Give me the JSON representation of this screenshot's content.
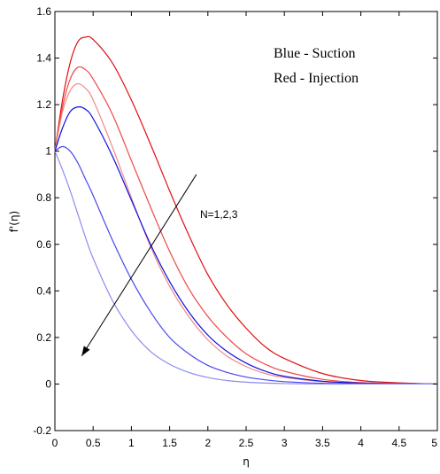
{
  "chart_data": {
    "type": "line",
    "xlabel": "η",
    "ylabel": "f'(η)",
    "xlim": [
      0,
      5
    ],
    "ylim": [
      -0.2,
      1.6
    ],
    "xticks": [
      "0",
      "0.5",
      "1",
      "1.5",
      "2",
      "2.5",
      "3",
      "3.5",
      "4",
      "4.5",
      "5"
    ],
    "yticks": [
      "-0.2",
      "0",
      "0.2",
      "0.4",
      "0.6",
      "0.8",
      "1",
      "1.2",
      "1.4",
      "1.6"
    ],
    "grid": false,
    "legend_lines": [
      "Blue - Suction",
      "Red - Injection"
    ],
    "legend_placement": "top-right",
    "annotation": {
      "text": "N=1,2,3",
      "arrow_from": [
        1.85,
        0.9
      ],
      "arrow_to": [
        0.35,
        0.12
      ]
    },
    "series": [
      {
        "color": "#e01010",
        "x": [
          0,
          0.1,
          0.2,
          0.3,
          0.4,
          0.5,
          0.75,
          1,
          1.25,
          1.5,
          1.75,
          2,
          2.25,
          2.5,
          2.75,
          3,
          3.5,
          4,
          4.5,
          5
        ],
        "y": [
          1.0,
          1.22,
          1.38,
          1.47,
          1.49,
          1.48,
          1.38,
          1.22,
          1.03,
          0.83,
          0.64,
          0.47,
          0.34,
          0.24,
          0.16,
          0.11,
          0.045,
          0.015,
          0.005,
          0.0
        ]
      },
      {
        "color": "#ee4848",
        "x": [
          0,
          0.1,
          0.2,
          0.3,
          0.4,
          0.5,
          0.75,
          1,
          1.25,
          1.5,
          1.75,
          2,
          2.25,
          2.5,
          2.75,
          3,
          3.5,
          4,
          4.5,
          5
        ],
        "y": [
          1.0,
          1.19,
          1.31,
          1.36,
          1.35,
          1.31,
          1.16,
          0.96,
          0.76,
          0.57,
          0.41,
          0.29,
          0.2,
          0.13,
          0.085,
          0.055,
          0.02,
          0.006,
          0.002,
          0.0
        ]
      },
      {
        "color": "#f28888",
        "x": [
          0,
          0.1,
          0.2,
          0.3,
          0.4,
          0.5,
          0.75,
          1,
          1.25,
          1.5,
          1.75,
          2,
          2.25,
          2.5,
          2.75,
          3,
          3.5,
          4,
          4.5,
          5
        ],
        "y": [
          1.0,
          1.17,
          1.26,
          1.29,
          1.27,
          1.22,
          1.02,
          0.8,
          0.59,
          0.42,
          0.29,
          0.19,
          0.12,
          0.075,
          0.045,
          0.028,
          0.01,
          0.003,
          0.001,
          0.0
        ]
      },
      {
        "color": "#1010e0",
        "x": [
          0,
          0.1,
          0.2,
          0.3,
          0.4,
          0.5,
          0.75,
          1,
          1.25,
          1.5,
          1.75,
          2,
          2.25,
          2.5,
          2.75,
          3,
          3.5,
          4,
          4.5,
          5
        ],
        "y": [
          1.0,
          1.1,
          1.17,
          1.19,
          1.18,
          1.14,
          0.98,
          0.79,
          0.6,
          0.44,
          0.31,
          0.21,
          0.14,
          0.09,
          0.055,
          0.033,
          0.012,
          0.004,
          0.001,
          0.0
        ]
      },
      {
        "color": "#4848ee",
        "x": [
          0,
          0.1,
          0.2,
          0.3,
          0.4,
          0.5,
          0.75,
          1,
          1.25,
          1.5,
          1.75,
          2,
          2.25,
          2.5,
          2.75,
          3,
          3.5,
          4,
          4.5,
          5
        ],
        "y": [
          1.0,
          1.02,
          1.0,
          0.95,
          0.88,
          0.81,
          0.62,
          0.45,
          0.31,
          0.2,
          0.13,
          0.08,
          0.05,
          0.03,
          0.018,
          0.01,
          0.003,
          0.001,
          0.0,
          0.0
        ]
      },
      {
        "color": "#8c8cf2",
        "x": [
          0,
          0.1,
          0.2,
          0.3,
          0.4,
          0.5,
          0.75,
          1,
          1.25,
          1.5,
          1.75,
          2,
          2.25,
          2.5,
          2.75,
          3,
          3.5,
          4,
          4.5,
          5
        ],
        "y": [
          1.0,
          0.92,
          0.83,
          0.73,
          0.63,
          0.54,
          0.36,
          0.23,
          0.14,
          0.085,
          0.05,
          0.028,
          0.015,
          0.008,
          0.004,
          0.002,
          0.0,
          0.0,
          0.0,
          0.0
        ]
      }
    ]
  }
}
